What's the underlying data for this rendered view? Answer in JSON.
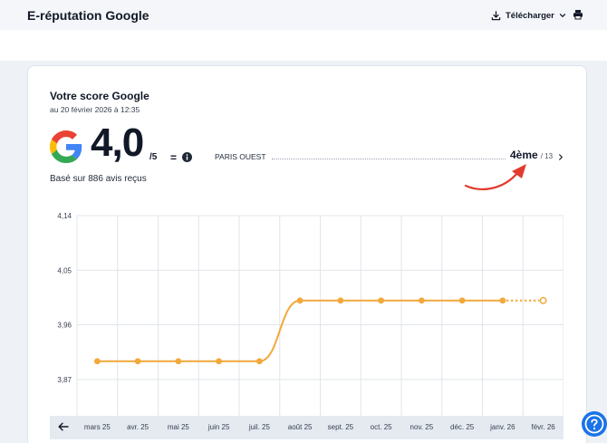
{
  "header": {
    "title": "E-réputation Google",
    "download_label": "Télécharger"
  },
  "score": {
    "title": "Votre score Google",
    "date": "au 20 février 2026 à 12:35",
    "value": "4,0",
    "max": "/5",
    "trend": "=",
    "reviews": "Basé sur 886 avis reçus"
  },
  "ranking": {
    "region": "PARIS OUEST",
    "rank": "4ème",
    "total": "/ 13"
  },
  "icons": {
    "logo": "google-g-icon",
    "download": "download-icon",
    "dropdown": "chevron-down-icon",
    "print": "printer-icon",
    "info": "info-icon",
    "rank_link": "chevron-right-icon",
    "back": "arrow-left-icon",
    "help": "help-icon"
  },
  "colors": {
    "line": "#f2a83b",
    "annotation_arrow": "#e23b2e",
    "help_button": "#1a73e8",
    "text": "#111827",
    "axis_bar": "#e5eaf1"
  },
  "chart_data": {
    "type": "line",
    "title": "",
    "xlabel": "",
    "ylabel": "",
    "categories": [
      "mars 25",
      "avr. 25",
      "mai 25",
      "juin 25",
      "juil. 25",
      "août 25",
      "sept. 25",
      "oct. 25",
      "nov. 25",
      "déc. 25",
      "janv. 26",
      "févr. 26"
    ],
    "series": [
      {
        "values": [
          3.9,
          3.9,
          3.9,
          3.9,
          3.9,
          4.0,
          4.0,
          4.0,
          4.0,
          4.0,
          4.0,
          4.0
        ]
      }
    ],
    "projected_from_index": 10,
    "y_ticks": [
      "4,14",
      "4,05",
      "3,96",
      "3,87"
    ],
    "y_tick_values": [
      4.14,
      4.05,
      3.96,
      3.87
    ],
    "ylim": [
      3.81,
      4.14
    ],
    "grid": true,
    "legend": "none"
  }
}
